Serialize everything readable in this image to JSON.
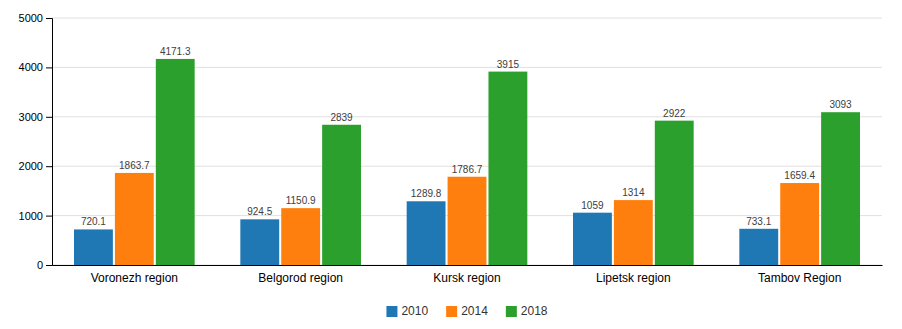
{
  "chart_data": {
    "type": "bar",
    "categories": [
      "Voronezh region",
      "Belgorod region",
      "Kursk region",
      "Lipetsk region",
      "Tambov Region"
    ],
    "series": [
      {
        "name": "2010",
        "values": [
          720.1,
          924.5,
          1289.8,
          1059,
          733.1
        ]
      },
      {
        "name": "2014",
        "values": [
          1863.7,
          1150.9,
          1786.7,
          1314,
          1659.4
        ]
      },
      {
        "name": "2018",
        "values": [
          4171.3,
          2839,
          3915,
          2922,
          3093
        ]
      }
    ],
    "ylim": [
      0,
      5000
    ],
    "yticks": [
      0,
      1000,
      2000,
      3000,
      4000,
      5000
    ],
    "grid": true,
    "legend": "bottom",
    "data_labels": true
  }
}
